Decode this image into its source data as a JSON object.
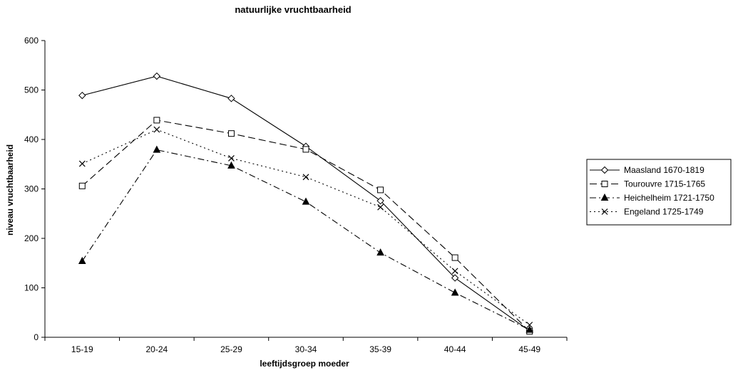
{
  "chart_data": {
    "type": "line",
    "title": "natuurlijke vruchtbaarheid",
    "xlabel": "leeftijdsgroep moeder",
    "ylabel": "niveau vruchtbaarheid",
    "categories": [
      "15-19",
      "20-24",
      "25-29",
      "30-34",
      "35-39",
      "40-44",
      "45-49"
    ],
    "ylim": [
      0,
      600
    ],
    "yticks": [
      0,
      100,
      200,
      300,
      400,
      500,
      600
    ],
    "grid": false,
    "legend_position": "right",
    "series": [
      {
        "name": "Maasland 1670-1819",
        "values": [
          489,
          528,
          483,
          386,
          276,
          120,
          13
        ],
        "marker": "diamond",
        "dash": "solid"
      },
      {
        "name": "Tourouvre 1715-1765",
        "values": [
          306,
          439,
          412,
          380,
          298,
          161,
          12
        ],
        "marker": "square",
        "dash": "dashed"
      },
      {
        "name": "Heichelheim 1721-1750",
        "values": [
          154,
          379,
          347,
          274,
          171,
          90,
          15
        ],
        "marker": "triangle",
        "dash": "dashdot"
      },
      {
        "name": "Engeland 1725-1749",
        "values": [
          351,
          420,
          362,
          324,
          263,
          134,
          25
        ],
        "marker": "cross",
        "dash": "dotted"
      }
    ]
  }
}
